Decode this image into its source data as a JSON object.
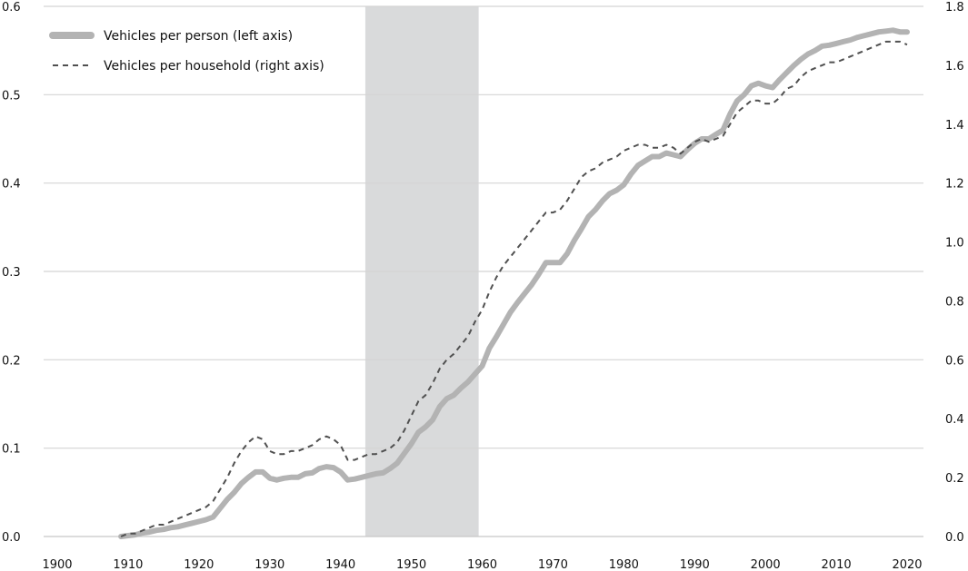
{
  "chart_data": {
    "type": "line",
    "title": "",
    "xlabel": "",
    "ylabel": "",
    "y2label": "",
    "xlim": [
      1900,
      2020
    ],
    "ylim": [
      0,
      0.6
    ],
    "y2lim": [
      0,
      1.8
    ],
    "x_ticks": [
      1900,
      1910,
      1920,
      1930,
      1940,
      1950,
      1960,
      1970,
      1980,
      1990,
      2000,
      2010,
      2020
    ],
    "y_ticks": [
      0.0,
      0.1,
      0.2,
      0.3,
      0.4,
      0.5,
      0.6
    ],
    "y_tick_labels": [
      "0.0",
      "0.1",
      "0.2",
      "0.3",
      "0.4",
      "0.5",
      "0.6"
    ],
    "y2_ticks": [
      0.0,
      0.2,
      0.4,
      0.6,
      0.8,
      1.0,
      1.2,
      1.4,
      1.6,
      1.8
    ],
    "y2_tick_labels": [
      "0.0",
      "0.2",
      "0.4",
      "0.6",
      "0.8",
      "1.0",
      "1.2",
      "1.4",
      "1.6",
      "1.8"
    ],
    "grid": "horizontal",
    "legend_position": "top-left",
    "shaded_region": {
      "x": [
        1943.5,
        1959.5
      ],
      "color": "#d9dadb"
    },
    "series": [
      {
        "name": "Vehicles per person (left axis)",
        "axis": "left",
        "style": "solid",
        "color": "#b3b3b3",
        "x": [
          1909,
          1910,
          1911,
          1912,
          1913,
          1914,
          1915,
          1916,
          1917,
          1918,
          1919,
          1920,
          1921,
          1922,
          1923,
          1924,
          1925,
          1926,
          1927,
          1928,
          1929,
          1930,
          1931,
          1932,
          1933,
          1934,
          1935,
          1936,
          1937,
          1938,
          1939,
          1940,
          1941,
          1942,
          1943,
          1944,
          1945,
          1946,
          1947,
          1948,
          1949,
          1950,
          1951,
          1952,
          1953,
          1954,
          1955,
          1956,
          1957,
          1958,
          1959,
          1960,
          1961,
          1962,
          1963,
          1964,
          1965,
          1966,
          1967,
          1968,
          1969,
          1970,
          1971,
          1972,
          1973,
          1974,
          1975,
          1976,
          1977,
          1978,
          1979,
          1980,
          1981,
          1982,
          1983,
          1984,
          1985,
          1986,
          1987,
          1988,
          1989,
          1990,
          1991,
          1992,
          1993,
          1994,
          1995,
          1996,
          1997,
          1998,
          1999,
          2000,
          2001,
          2002,
          2003,
          2004,
          2005,
          2006,
          2007,
          2008,
          2009,
          2010,
          2011,
          2012,
          2013,
          2014,
          2015,
          2016,
          2017,
          2018,
          2019,
          2020
        ],
        "values": [
          0.0,
          0.001,
          0.002,
          0.004,
          0.005,
          0.007,
          0.008,
          0.01,
          0.011,
          0.013,
          0.015,
          0.017,
          0.019,
          0.022,
          0.032,
          0.042,
          0.05,
          0.06,
          0.067,
          0.073,
          0.073,
          0.066,
          0.064,
          0.066,
          0.067,
          0.067,
          0.071,
          0.072,
          0.077,
          0.079,
          0.078,
          0.073,
          0.064,
          0.065,
          0.067,
          0.069,
          0.071,
          0.072,
          0.077,
          0.083,
          0.094,
          0.105,
          0.118,
          0.124,
          0.132,
          0.147,
          0.156,
          0.16,
          0.168,
          0.175,
          0.184,
          0.193,
          0.213,
          0.226,
          0.24,
          0.254,
          0.265,
          0.275,
          0.285,
          0.297,
          0.31,
          0.31,
          0.31,
          0.32,
          0.335,
          0.348,
          0.362,
          0.37,
          0.38,
          0.388,
          0.392,
          0.398,
          0.41,
          0.42,
          0.425,
          0.43,
          0.43,
          0.434,
          0.432,
          0.43,
          0.438,
          0.445,
          0.45,
          0.45,
          0.455,
          0.46,
          0.478,
          0.493,
          0.5,
          0.51,
          0.513,
          0.51,
          0.508,
          0.517,
          0.525,
          0.533,
          0.54,
          0.546,
          0.55,
          0.555,
          0.556,
          0.558,
          0.56,
          0.562,
          0.565,
          0.567,
          0.569,
          0.571,
          0.572,
          0.573,
          0.571,
          0.571
        ]
      },
      {
        "name": "Vehicles per household (right axis)",
        "axis": "right",
        "style": "dashed",
        "color": "#505050",
        "x": [
          1909,
          1910,
          1911,
          1912,
          1913,
          1914,
          1915,
          1916,
          1917,
          1918,
          1919,
          1920,
          1921,
          1922,
          1923,
          1924,
          1925,
          1926,
          1927,
          1928,
          1929,
          1930,
          1931,
          1932,
          1933,
          1934,
          1935,
          1936,
          1937,
          1938,
          1939,
          1940,
          1941,
          1942,
          1943,
          1944,
          1945,
          1946,
          1947,
          1948,
          1949,
          1950,
          1951,
          1952,
          1953,
          1954,
          1955,
          1956,
          1957,
          1958,
          1959,
          1960,
          1961,
          1962,
          1963,
          1964,
          1965,
          1966,
          1967,
          1968,
          1969,
          1970,
          1971,
          1972,
          1973,
          1974,
          1975,
          1976,
          1977,
          1978,
          1979,
          1980,
          1981,
          1982,
          1983,
          1984,
          1985,
          1986,
          1987,
          1988,
          1989,
          1990,
          1991,
          1992,
          1993,
          1994,
          1995,
          1996,
          1997,
          1998,
          1999,
          2000,
          2001,
          2002,
          2003,
          2004,
          2005,
          2006,
          2007,
          2008,
          2009,
          2010,
          2011,
          2012,
          2013,
          2014,
          2015,
          2016,
          2017,
          2018,
          2019,
          2020
        ],
        "values": [
          0.0,
          0.01,
          0.01,
          0.02,
          0.03,
          0.04,
          0.04,
          0.05,
          0.06,
          0.07,
          0.08,
          0.09,
          0.1,
          0.12,
          0.16,
          0.2,
          0.25,
          0.29,
          0.32,
          0.34,
          0.33,
          0.29,
          0.28,
          0.28,
          0.29,
          0.29,
          0.3,
          0.31,
          0.33,
          0.34,
          0.33,
          0.31,
          0.26,
          0.26,
          0.27,
          0.28,
          0.28,
          0.29,
          0.3,
          0.32,
          0.36,
          0.41,
          0.46,
          0.48,
          0.52,
          0.57,
          0.6,
          0.62,
          0.65,
          0.68,
          0.73,
          0.77,
          0.83,
          0.88,
          0.92,
          0.95,
          0.98,
          1.01,
          1.04,
          1.07,
          1.1,
          1.1,
          1.11,
          1.14,
          1.18,
          1.22,
          1.24,
          1.25,
          1.27,
          1.28,
          1.29,
          1.31,
          1.32,
          1.33,
          1.33,
          1.32,
          1.32,
          1.33,
          1.32,
          1.3,
          1.32,
          1.34,
          1.35,
          1.34,
          1.35,
          1.36,
          1.4,
          1.44,
          1.46,
          1.48,
          1.48,
          1.47,
          1.47,
          1.49,
          1.52,
          1.53,
          1.56,
          1.58,
          1.59,
          1.6,
          1.61,
          1.61,
          1.62,
          1.63,
          1.64,
          1.65,
          1.66,
          1.67,
          1.68,
          1.68,
          1.68,
          1.67
        ]
      }
    ]
  }
}
